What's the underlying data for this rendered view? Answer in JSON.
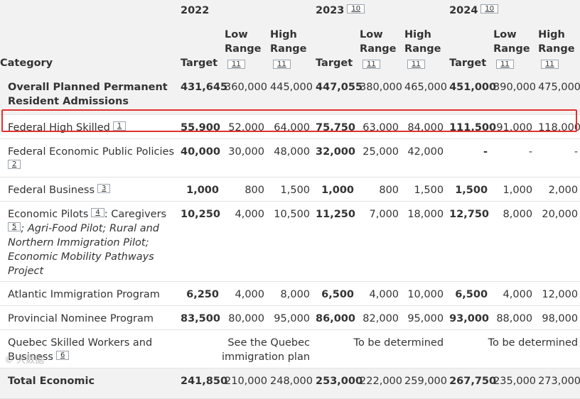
{
  "header": {
    "year_1": "2022",
    "year_2": "2023",
    "year_3": "2024",
    "year_2_footnote": "10",
    "year_3_footnote": "10",
    "category_label": "Category",
    "target_label": "Target",
    "low_range_label_1": "Low",
    "low_range_label_2": "Range",
    "high_range_label_1": "High",
    "high_range_label_2": "Range",
    "range_footnote": "11"
  },
  "rows": [
    {
      "label_1": "Overall Planned Permanent",
      "label_2": "Resident Admissions",
      "v": [
        "431,645",
        "360,000",
        "445,000",
        "447,055",
        "380,000",
        "465,000",
        "451,000",
        "390,000",
        "475,000"
      ]
    },
    {
      "label": "Federal High Skilled",
      "footnote": "1",
      "v": [
        "55,900",
        "52,000",
        "64,000",
        "75,750",
        "63,000",
        "84,000",
        "111,500",
        "91,000",
        "118,000"
      ]
    },
    {
      "label": "Federal Economic Public Policies",
      "footnote": "2",
      "v": [
        "40,000",
        "30,000",
        "48,000",
        "32,000",
        "25,000",
        "42,000",
        "-",
        "-",
        "-"
      ]
    },
    {
      "label": "Federal Business",
      "footnote": "3",
      "v": [
        "1,000",
        "800",
        "1,500",
        "1,000",
        "800",
        "1,500",
        "1,500",
        "1,000",
        "2,000"
      ]
    },
    {
      "label": "Economic Pilots",
      "footnote": "4",
      "label_after": ": Caregivers",
      "footnote_2": "5",
      "label_italic_1": "; Agri-Food Pilot; Rural and",
      "label_italic_2": "Northern Immigration Pilot;",
      "label_italic_3": "Economic Mobility Pathways Project",
      "v": [
        "10,250",
        "4,000",
        "10,500",
        "11,250",
        "7,000",
        "18,000",
        "12,750",
        "8,000",
        "20,000"
      ]
    },
    {
      "label": "Atlantic Immigration Program",
      "v": [
        "6,250",
        "4,000",
        "8,000",
        "6,500",
        "4,000",
        "10,000",
        "6,500",
        "4,000",
        "12,000"
      ]
    },
    {
      "label": "Provincial Nominee Program",
      "v": [
        "83,500",
        "80,000",
        "95,000",
        "86,000",
        "82,000",
        "95,000",
        "93,000",
        "88,000",
        "98,000"
      ]
    },
    {
      "label_1": "Quebec Skilled Workers and",
      "label_2": "Business",
      "footnote": "6",
      "note_2022_1": "See the Quebec",
      "note_2022_2": "immigration plan",
      "note_2023": "To be determined",
      "note_2024": "To be determined"
    },
    {
      "label": "Total Economic",
      "v": [
        "241,850",
        "210,000",
        "248,000",
        "253,000",
        "222,000",
        "259,000",
        "267,750",
        "235,000",
        "273,000"
      ]
    }
  ],
  "watermark": "© 大数据"
}
